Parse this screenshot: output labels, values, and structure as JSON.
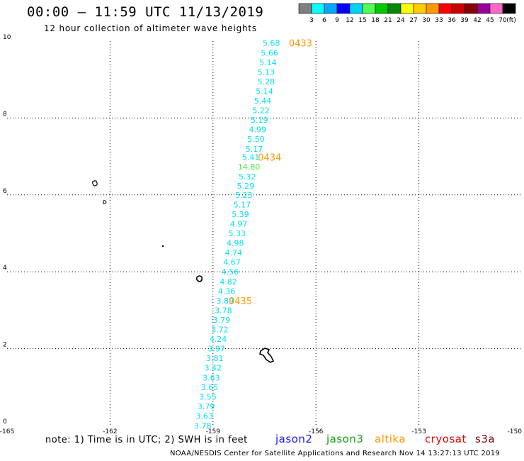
{
  "header": {
    "title": "00:00 – 11:59 UTC 11/13/2019",
    "subtitle": "12 hour collection of altimeter wave heights"
  },
  "colorbar": {
    "labels": [
      "3",
      "6",
      "9",
      "12",
      "15",
      "18",
      "21",
      "24",
      "27",
      "30",
      "33",
      "36",
      "39",
      "42",
      "45",
      "70",
      "(ft)"
    ],
    "colors": [
      "#808080",
      "#00ffff",
      "#00a6ff",
      "#0000ff",
      "#00d2ff",
      "#50ff50",
      "#00c800",
      "#008800",
      "#ffff00",
      "#ffcc00",
      "#ff9900",
      "#ff0000",
      "#cc0000",
      "#880000",
      "#990099",
      "#ff66cc",
      "#000000"
    ]
  },
  "footer": {
    "note": "note: 1) Time is in UTC; 2) SWH is in feet",
    "credit": "NOAA/NESDIS Center for Satellite Applications and Research   Nov 14 13:27:13 UTC 2019"
  },
  "satellites": [
    {
      "name": "jason2",
      "color": "#1414ff"
    },
    {
      "name": "jason3",
      "color": "#10a010"
    },
    {
      "name": "altika",
      "color": "#ff9900"
    },
    {
      "name": "cryosat",
      "color": "#e00000"
    },
    {
      "name": "s3a",
      "color": "#800000"
    }
  ],
  "chart_data": {
    "type": "scatter",
    "title": "",
    "xlabel": "",
    "ylabel": "",
    "xlim": [
      -165,
      -150
    ],
    "ylim": [
      0,
      10
    ],
    "xticks": [
      "-165",
      "-162",
      "-159",
      "-156",
      "-153",
      "-150"
    ],
    "yticks": [
      "0",
      "2",
      "4",
      "6",
      "8",
      "10"
    ],
    "grid": true,
    "series": [
      {
        "color": "#00e0f0",
        "points": [
          {
            "x": -157.3,
            "y": 9.95,
            "label": "5.68"
          },
          {
            "x": -157.35,
            "y": 9.7,
            "label": "5.66"
          },
          {
            "x": -157.4,
            "y": 9.45,
            "label": "5.14"
          },
          {
            "x": -157.45,
            "y": 9.2,
            "label": "5.13"
          },
          {
            "x": -157.45,
            "y": 8.95,
            "label": "5.28"
          },
          {
            "x": -157.5,
            "y": 8.7,
            "label": "5.14"
          },
          {
            "x": -157.55,
            "y": 8.45,
            "label": "5.44"
          },
          {
            "x": -157.6,
            "y": 8.2,
            "label": "5.22"
          },
          {
            "x": -157.65,
            "y": 7.95,
            "label": "5.19"
          },
          {
            "x": -157.7,
            "y": 7.7,
            "label": "4.99"
          },
          {
            "x": -157.75,
            "y": 7.45,
            "label": "5.50"
          },
          {
            "x": -157.8,
            "y": 7.2,
            "label": "5.17"
          },
          {
            "x": -157.9,
            "y": 6.98,
            "label": "5.41"
          },
          {
            "x": -158.0,
            "y": 6.48,
            "label": "5.32"
          },
          {
            "x": -158.05,
            "y": 6.24,
            "label": "5.29"
          },
          {
            "x": -158.1,
            "y": 6.0,
            "label": "5.23"
          },
          {
            "x": -158.15,
            "y": 5.75,
            "label": "5.17"
          },
          {
            "x": -158.2,
            "y": 5.5,
            "label": "5.39"
          },
          {
            "x": -158.25,
            "y": 5.25,
            "label": "4.97"
          },
          {
            "x": -158.3,
            "y": 5.0,
            "label": "5.33"
          },
          {
            "x": -158.35,
            "y": 4.75,
            "label": "4.98"
          },
          {
            "x": -158.4,
            "y": 4.5,
            "label": "4.74"
          },
          {
            "x": -158.45,
            "y": 4.25,
            "label": "4.67"
          },
          {
            "x": -158.5,
            "y": 4.0,
            "label": "4.56"
          },
          {
            "x": -158.55,
            "y": 3.75,
            "label": "4.82"
          },
          {
            "x": -158.6,
            "y": 3.5,
            "label": "4.36"
          },
          {
            "x": -158.65,
            "y": 3.25,
            "label": "3.89"
          },
          {
            "x": -158.7,
            "y": 3.0,
            "label": "3.78"
          },
          {
            "x": -158.75,
            "y": 2.75,
            "label": "3.79"
          },
          {
            "x": -158.8,
            "y": 2.5,
            "label": "3.72"
          },
          {
            "x": -158.85,
            "y": 2.25,
            "label": "4.24"
          },
          {
            "x": -158.9,
            "y": 2.0,
            "label": "3.97"
          },
          {
            "x": -158.95,
            "y": 1.75,
            "label": "3.81"
          },
          {
            "x": -159.0,
            "y": 1.5,
            "label": "3.42"
          },
          {
            "x": -159.05,
            "y": 1.25,
            "label": "3.63"
          },
          {
            "x": -159.1,
            "y": 1.0,
            "label": "3.65"
          },
          {
            "x": -159.15,
            "y": 0.75,
            "label": "3.55"
          },
          {
            "x": -159.2,
            "y": 0.5,
            "label": "3.79"
          },
          {
            "x": -159.25,
            "y": 0.25,
            "label": "3.63"
          },
          {
            "x": -159.3,
            "y": 0.0,
            "label": "3.78"
          }
        ]
      },
      {
        "color": "#50e050",
        "points": [
          {
            "x": -157.95,
            "y": 6.73,
            "label": "14.80"
          }
        ]
      }
    ],
    "annotations": [
      {
        "text": "0433",
        "x": -156.45,
        "y": 9.95,
        "color": "#ff9900"
      },
      {
        "text": "0434",
        "x": -157.35,
        "y": 6.98,
        "color": "#ff9900"
      },
      {
        "text": "0435",
        "x": -158.2,
        "y": 3.25,
        "color": "#ff9900"
      }
    ]
  }
}
